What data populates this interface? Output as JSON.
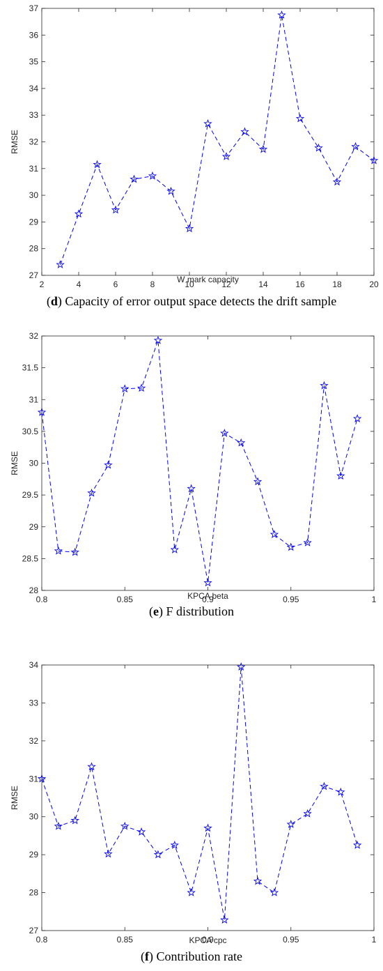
{
  "chart_data": [
    {
      "type": "line",
      "xlabel": "W mark capacity",
      "ylabel": "RMSE",
      "xlim": [
        2,
        20
      ],
      "ylim": [
        27,
        37
      ],
      "xticks": [
        "2",
        "4",
        "6",
        "8",
        "10",
        "12",
        "14",
        "16",
        "18",
        "20"
      ],
      "yticks": [
        "27",
        "28",
        "29",
        "30",
        "31",
        "32",
        "33",
        "34",
        "35",
        "36",
        "37"
      ],
      "x": [
        3,
        4,
        5,
        6,
        7,
        8,
        9,
        10,
        11,
        12,
        13,
        14,
        15,
        16,
        17,
        18,
        19,
        20
      ],
      "y": [
        27.4,
        29.3,
        31.15,
        29.45,
        30.6,
        30.72,
        30.15,
        28.75,
        32.68,
        31.45,
        32.38,
        31.72,
        36.75,
        32.87,
        31.77,
        30.5,
        31.82,
        31.3
      ],
      "line_style": "dashed",
      "marker": "star",
      "color": "#0000ff",
      "grid": false,
      "caption_letter": "d",
      "caption_text": "Capacity of error output space detects the drift sample"
    },
    {
      "type": "line",
      "xlabel": "KPCA beta",
      "ylabel": "RMSE",
      "xlim": [
        0.8,
        1
      ],
      "ylim": [
        28,
        32
      ],
      "xticks": [
        "0.8",
        "0.85",
        "0.9",
        "0.95",
        "1"
      ],
      "yticks": [
        "28",
        "28.5",
        "29",
        "29.5",
        "30",
        "30.5",
        "31",
        "31.5",
        "32"
      ],
      "x": [
        0.8,
        0.81,
        0.82,
        0.83,
        0.84,
        0.85,
        0.86,
        0.87,
        0.88,
        0.89,
        0.9,
        0.91,
        0.92,
        0.93,
        0.94,
        0.95,
        0.96,
        0.97,
        0.98,
        0.99
      ],
      "y": [
        30.8,
        28.62,
        28.6,
        29.53,
        29.97,
        31.17,
        31.18,
        31.93,
        28.64,
        29.6,
        28.12,
        30.47,
        30.32,
        29.71,
        28.88,
        28.68,
        28.75,
        31.22,
        29.8,
        30.7
      ],
      "line_style": "dashed",
      "marker": "star",
      "color": "#0000ff",
      "grid": false,
      "caption_letter": "e",
      "caption_text": "F distribution"
    },
    {
      "type": "line",
      "xlabel": "KPCA cpc",
      "ylabel": "RMSE",
      "xlim": [
        0.8,
        1
      ],
      "ylim": [
        27,
        34
      ],
      "xticks": [
        "0.8",
        "0.85",
        "0.9",
        "0.95",
        "1"
      ],
      "yticks": [
        "27",
        "28",
        "29",
        "30",
        "31",
        "32",
        "33",
        "34"
      ],
      "x": [
        0.8,
        0.81,
        0.82,
        0.83,
        0.84,
        0.85,
        0.86,
        0.87,
        0.88,
        0.89,
        0.9,
        0.91,
        0.92,
        0.93,
        0.94,
        0.95,
        0.96,
        0.97,
        0.98,
        0.99
      ],
      "y": [
        31.0,
        29.75,
        29.9,
        31.32,
        29.02,
        29.75,
        29.6,
        29.0,
        29.25,
        28.0,
        29.7,
        27.28,
        33.95,
        28.3,
        28.0,
        29.8,
        30.08,
        30.8,
        30.65,
        29.25
      ],
      "line_style": "dashed",
      "marker": "star",
      "color": "#0000ff",
      "grid": false,
      "caption_letter": "f",
      "caption_text": "Contribution rate"
    }
  ]
}
